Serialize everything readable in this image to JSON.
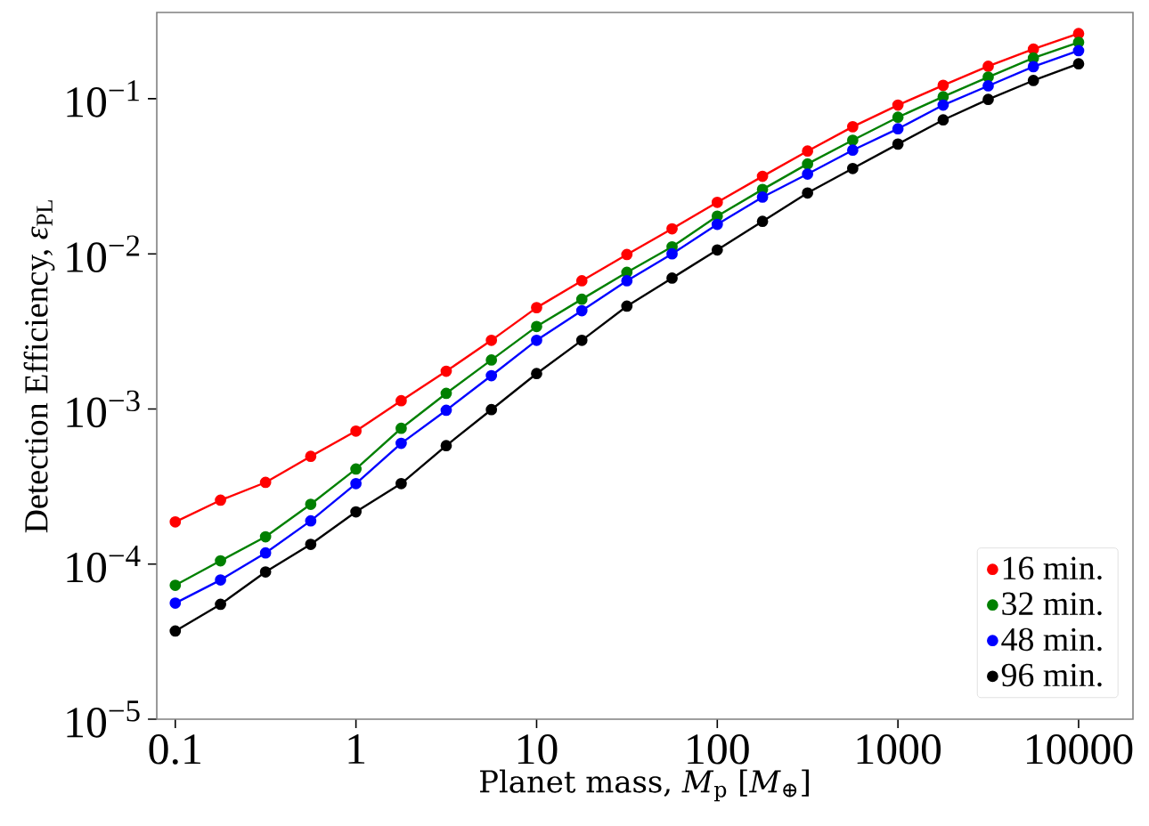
{
  "chart_data": {
    "type": "line",
    "xlabel": "Planet mass, *M*$_{p}$ [*M*$_{⊕}$]",
    "ylabel": "Detection Efficiency, *ε*$_{PL}$",
    "x": [
      0.1,
      0.178,
      0.316,
      0.562,
      1,
      1.78,
      3.16,
      5.62,
      10,
      17.8,
      31.6,
      56.2,
      100,
      178,
      316,
      562,
      1000,
      1780,
      3160,
      5620,
      10000
    ],
    "series": [
      {
        "name": "16 min.",
        "color": "#ff0000",
        "values": [
          0.000187,
          0.000258,
          0.000336,
          0.000495,
          0.00072,
          0.00113,
          0.00175,
          0.00277,
          0.0045,
          0.0067,
          0.0099,
          0.0145,
          0.0215,
          0.0316,
          0.046,
          0.066,
          0.091,
          0.122,
          0.162,
          0.209,
          0.263
        ]
      },
      {
        "name": "32 min.",
        "color": "#008000",
        "values": [
          7.3e-05,
          0.000105,
          0.00015,
          0.000243,
          0.00041,
          0.00075,
          0.00126,
          0.00207,
          0.0034,
          0.0051,
          0.0076,
          0.0111,
          0.0175,
          0.026,
          0.038,
          0.054,
          0.076,
          0.103,
          0.138,
          0.183,
          0.231
        ]
      },
      {
        "name": "48 min.",
        "color": "#0000ff",
        "values": [
          5.6e-05,
          7.9e-05,
          0.000118,
          0.00019,
          0.00033,
          0.0006,
          0.00098,
          0.00164,
          0.00277,
          0.0043,
          0.0067,
          0.01,
          0.0155,
          0.0232,
          0.0327,
          0.0466,
          0.064,
          0.091,
          0.121,
          0.161,
          0.204
        ]
      },
      {
        "name": "96 min.",
        "color": "#000000",
        "values": [
          3.7e-05,
          5.5e-05,
          8.9e-05,
          0.000134,
          0.000217,
          0.00033,
          0.00058,
          0.00099,
          0.00169,
          0.00277,
          0.0046,
          0.00698,
          0.0106,
          0.0162,
          0.0247,
          0.0355,
          0.051,
          0.073,
          0.099,
          0.131,
          0.168
        ]
      }
    ],
    "log": "xy",
    "xlim": [
      0.079,
      20000
    ],
    "ylim": [
      1e-05,
      0.36
    ],
    "xticks": [
      0.1,
      1,
      10,
      100,
      1000,
      10000
    ],
    "yticks": [
      {
        "value": 1e-05,
        "label": "10$^{−5}$"
      },
      {
        "value": 0.0001,
        "label": "10$^{−4}$"
      },
      {
        "value": 0.001,
        "label": "10$^{−3}$"
      },
      {
        "value": 0.01,
        "label": "10$^{−2}$"
      },
      {
        "value": 0.1,
        "label": "10$^{−1}$"
      }
    ],
    "marker": "circle",
    "line_style": "solid",
    "legend": "bottom right",
    "grid": false
  }
}
